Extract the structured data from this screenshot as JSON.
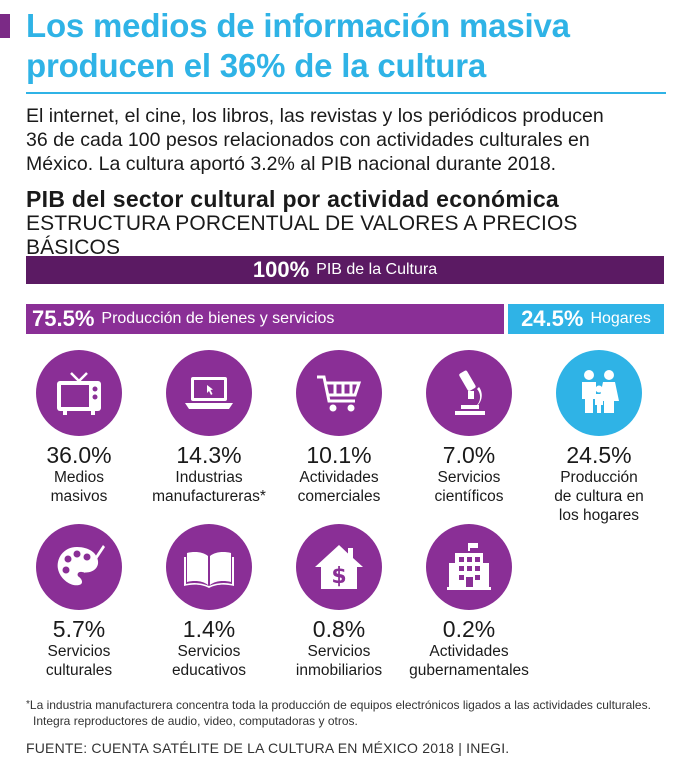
{
  "header": {
    "title_line1": "Los medios de información masiva",
    "title_line2": "producen el 36% de la cultura"
  },
  "intro": {
    "line1": "El internet, el cine, los libros, las revistas y los periódicos producen",
    "line2": "36 de cada 100 pesos relacionados con actividades culturales en",
    "line3": "México. La cultura aportó 3.2% al PIB nacional durante 2018."
  },
  "section": {
    "title": "PIB del sector cultural por actividad económica",
    "subtitle": "ESTRUCTURA PORCENTUAL DE VALORES A PRECIOS BÁSICOS"
  },
  "bars": {
    "total": {
      "value": "100%",
      "label": "PIB de la Cultura"
    },
    "production": {
      "value": "75.5%",
      "label": "Producción de bienes y servicios"
    },
    "households": {
      "value": "24.5%",
      "label": "Hogares"
    }
  },
  "categories": [
    {
      "pct": "36.0%",
      "label": "Medios\nmasivos",
      "icon": "tv-icon"
    },
    {
      "pct": "14.3%",
      "label": "Industrias\nmanufactureras*",
      "icon": "laptop-icon"
    },
    {
      "pct": "10.1%",
      "label": "Actividades\ncomerciales",
      "icon": "shopping-cart-icon"
    },
    {
      "pct": "7.0%",
      "label": "Servicios\ncientíficos",
      "icon": "microscope-icon"
    },
    {
      "pct": "24.5%",
      "label": "Producción\nde cultura en\nlos hogares",
      "icon": "family-icon"
    },
    {
      "pct": "5.7%",
      "label": "Servicios\nculturales",
      "icon": "palette-icon"
    },
    {
      "pct": "1.4%",
      "label": "Servicios\neducativos",
      "icon": "book-icon"
    },
    {
      "pct": "0.8%",
      "label": "Servicios\ninmobiliarios",
      "icon": "house-dollar-icon"
    },
    {
      "pct": "0.2%",
      "label": "Actividades\ngubernamentales",
      "icon": "government-building-icon"
    }
  ],
  "footnote": {
    "asterisk": "*",
    "line1": "La industria manufacturera concentra toda la producción de equipos electrónicos ligados a las actividades culturales.",
    "line2": "Integra reproductores de audio, video, computadoras y otros."
  },
  "source": "FUENTE: CUENTA SATÉLITE DE LA CULTURA EN MÉXICO 2018 | INEGI.",
  "colors": {
    "title_blue": "#2fb3e6",
    "purple": "#8a2f96",
    "dark_purple": "#5b1a63",
    "accent": "#7b2a86"
  }
}
